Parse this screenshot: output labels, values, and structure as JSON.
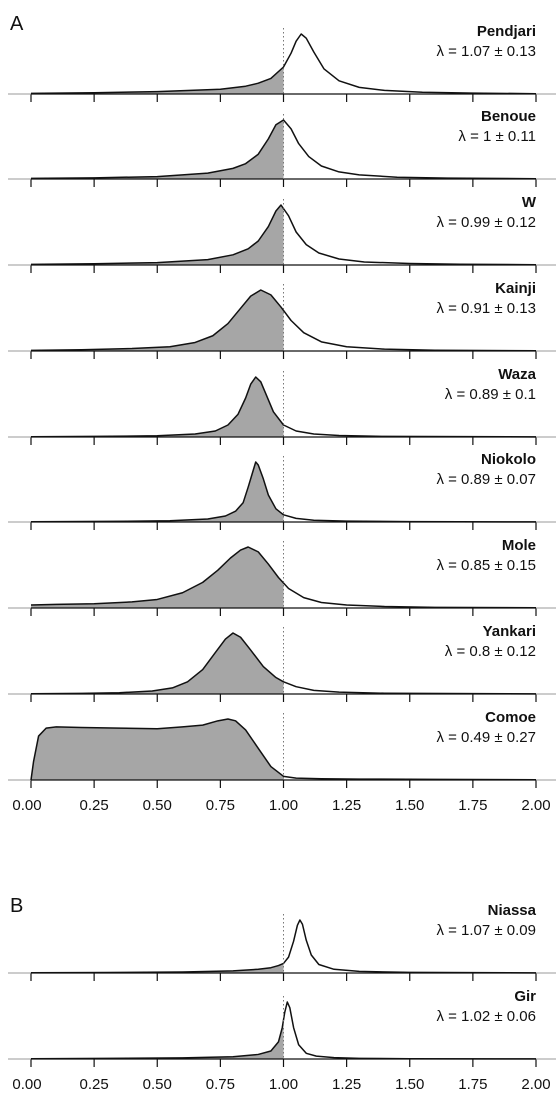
{
  "chart_data": [
    {
      "type": "area",
      "panel_label": "A",
      "x_axis": {
        "range": [
          0,
          2
        ],
        "ticks": [
          "0.00",
          "0.25",
          "0.50",
          "0.75",
          "1.00",
          "1.25",
          "1.50",
          "1.75",
          "2.00"
        ]
      },
      "reference_line_x": 1.0,
      "series": [
        {
          "name": "Pendjari",
          "stat": "λ = 1.07 ± 0.13",
          "x": [
            0,
            0.25,
            0.5,
            0.75,
            0.85,
            0.9,
            0.95,
            1.0,
            1.03,
            1.05,
            1.07,
            1.09,
            1.12,
            1.16,
            1.22,
            1.3,
            1.4,
            1.55,
            1.75,
            2.0
          ],
          "y": [
            0.01,
            0.02,
            0.04,
            0.08,
            0.13,
            0.18,
            0.26,
            0.45,
            0.68,
            0.88,
            1.0,
            0.93,
            0.7,
            0.42,
            0.22,
            0.11,
            0.06,
            0.03,
            0.015,
            0.005
          ]
        },
        {
          "name": "Benoue",
          "stat": "λ = 1 ± 0.11",
          "x": [
            0,
            0.25,
            0.5,
            0.7,
            0.8,
            0.85,
            0.9,
            0.94,
            0.97,
            1.0,
            1.03,
            1.06,
            1.1,
            1.15,
            1.22,
            1.3,
            1.45,
            1.65,
            2.0
          ],
          "y": [
            0.01,
            0.02,
            0.04,
            0.1,
            0.18,
            0.26,
            0.42,
            0.68,
            0.92,
            1.0,
            0.85,
            0.6,
            0.38,
            0.22,
            0.12,
            0.07,
            0.03,
            0.015,
            0.005
          ]
        },
        {
          "name": "W",
          "stat": "λ = 0.99 ± 0.12",
          "x": [
            0,
            0.25,
            0.5,
            0.7,
            0.8,
            0.86,
            0.9,
            0.94,
            0.97,
            0.99,
            1.02,
            1.05,
            1.09,
            1.14,
            1.22,
            1.32,
            1.5,
            1.7,
            2.0
          ],
          "y": [
            0.01,
            0.02,
            0.04,
            0.09,
            0.17,
            0.27,
            0.4,
            0.64,
            0.9,
            1.0,
            0.82,
            0.55,
            0.34,
            0.2,
            0.1,
            0.05,
            0.025,
            0.012,
            0.005
          ]
        },
        {
          "name": "Kainji",
          "stat": "λ = 0.91 ± 0.13",
          "x": [
            0,
            0.2,
            0.4,
            0.55,
            0.65,
            0.72,
            0.78,
            0.83,
            0.87,
            0.91,
            0.95,
            0.99,
            1.03,
            1.08,
            1.15,
            1.25,
            1.4,
            1.6,
            2.0
          ],
          "y": [
            0.01,
            0.02,
            0.04,
            0.07,
            0.14,
            0.25,
            0.45,
            0.7,
            0.9,
            1.0,
            0.92,
            0.72,
            0.5,
            0.3,
            0.15,
            0.07,
            0.03,
            0.012,
            0.004
          ]
        },
        {
          "name": "Waza",
          "stat": "λ = 0.89 ± 0.1",
          "x": [
            0,
            0.25,
            0.5,
            0.65,
            0.73,
            0.78,
            0.82,
            0.85,
            0.87,
            0.89,
            0.91,
            0.93,
            0.96,
            1.0,
            1.05,
            1.12,
            1.22,
            1.4,
            2.0
          ],
          "y": [
            0.005,
            0.01,
            0.02,
            0.05,
            0.1,
            0.2,
            0.38,
            0.65,
            0.88,
            1.0,
            0.92,
            0.72,
            0.42,
            0.2,
            0.1,
            0.05,
            0.025,
            0.01,
            0.003
          ]
        },
        {
          "name": "Niokolo",
          "stat": "λ = 0.89 ± 0.07",
          "x": [
            0,
            0.3,
            0.55,
            0.7,
            0.77,
            0.81,
            0.84,
            0.86,
            0.88,
            0.89,
            0.9,
            0.92,
            0.94,
            0.97,
            1.0,
            1.05,
            1.12,
            1.25,
            1.5,
            2.0
          ],
          "y": [
            0.005,
            0.01,
            0.02,
            0.05,
            0.1,
            0.18,
            0.32,
            0.58,
            0.86,
            1.0,
            0.95,
            0.72,
            0.45,
            0.22,
            0.12,
            0.06,
            0.03,
            0.015,
            0.006,
            0.002
          ]
        },
        {
          "name": "Mole",
          "stat": "λ = 0.85 ± 0.15",
          "x": [
            0,
            0.1,
            0.25,
            0.4,
            0.5,
            0.6,
            0.68,
            0.74,
            0.79,
            0.83,
            0.86,
            0.9,
            0.94,
            0.98,
            1.02,
            1.08,
            1.15,
            1.25,
            1.4,
            1.6,
            2.0
          ],
          "y": [
            0.05,
            0.06,
            0.07,
            0.1,
            0.14,
            0.25,
            0.42,
            0.62,
            0.82,
            0.95,
            1.0,
            0.92,
            0.72,
            0.5,
            0.32,
            0.17,
            0.09,
            0.05,
            0.025,
            0.01,
            0.004
          ]
        },
        {
          "name": "Yankari",
          "stat": "λ = 0.8 ± 0.12",
          "x": [
            0,
            0.2,
            0.35,
            0.48,
            0.56,
            0.62,
            0.68,
            0.73,
            0.77,
            0.8,
            0.83,
            0.87,
            0.92,
            0.97,
            1.0,
            1.05,
            1.12,
            1.22,
            1.4,
            2.0
          ],
          "y": [
            0.005,
            0.01,
            0.02,
            0.05,
            0.1,
            0.2,
            0.4,
            0.68,
            0.9,
            1.0,
            0.93,
            0.72,
            0.45,
            0.27,
            0.2,
            0.12,
            0.06,
            0.03,
            0.012,
            0.003
          ]
        },
        {
          "name": "Comoe",
          "stat": "λ = 0.49 ± 0.27",
          "x": [
            0,
            0.01,
            0.03,
            0.06,
            0.1,
            0.2,
            0.35,
            0.5,
            0.6,
            0.68,
            0.74,
            0.78,
            0.81,
            0.85,
            0.9,
            0.95,
            1.0,
            1.05,
            1.15,
            1.3,
            1.6,
            2.0
          ],
          "y": [
            0.0,
            0.3,
            0.72,
            0.85,
            0.87,
            0.86,
            0.85,
            0.84,
            0.87,
            0.9,
            0.97,
            1.0,
            0.97,
            0.82,
            0.52,
            0.22,
            0.06,
            0.03,
            0.02,
            0.015,
            0.01,
            0.005
          ]
        }
      ]
    },
    {
      "type": "area",
      "panel_label": "B",
      "x_axis": {
        "range": [
          0,
          2
        ],
        "ticks": [
          "0.00",
          "0.25",
          "0.50",
          "0.75",
          "1.00",
          "1.25",
          "1.50",
          "1.75",
          "2.00"
        ]
      },
      "reference_line_x": 1.0,
      "series": [
        {
          "name": "Niassa",
          "stat": "λ = 1.07 ± 0.09",
          "x": [
            0,
            0.3,
            0.6,
            0.8,
            0.9,
            0.95,
            0.98,
            1.0,
            1.02,
            1.04,
            1.055,
            1.065,
            1.075,
            1.09,
            1.11,
            1.14,
            1.2,
            1.3,
            1.5,
            2.0
          ],
          "y": [
            0.005,
            0.01,
            0.02,
            0.04,
            0.07,
            0.1,
            0.14,
            0.18,
            0.3,
            0.6,
            0.9,
            1.0,
            0.92,
            0.62,
            0.34,
            0.16,
            0.07,
            0.03,
            0.012,
            0.003
          ]
        },
        {
          "name": "Gir",
          "stat": "λ = 1.02 ± 0.06",
          "x": [
            0,
            0.3,
            0.6,
            0.8,
            0.9,
            0.95,
            0.98,
            0.995,
            1.005,
            1.015,
            1.025,
            1.04,
            1.06,
            1.09,
            1.13,
            1.2,
            1.3,
            1.5,
            2.0
          ],
          "y": [
            0.005,
            0.01,
            0.02,
            0.04,
            0.08,
            0.14,
            0.3,
            0.55,
            0.82,
            1.0,
            0.9,
            0.55,
            0.25,
            0.1,
            0.05,
            0.025,
            0.012,
            0.005,
            0.002
          ]
        }
      ]
    }
  ]
}
